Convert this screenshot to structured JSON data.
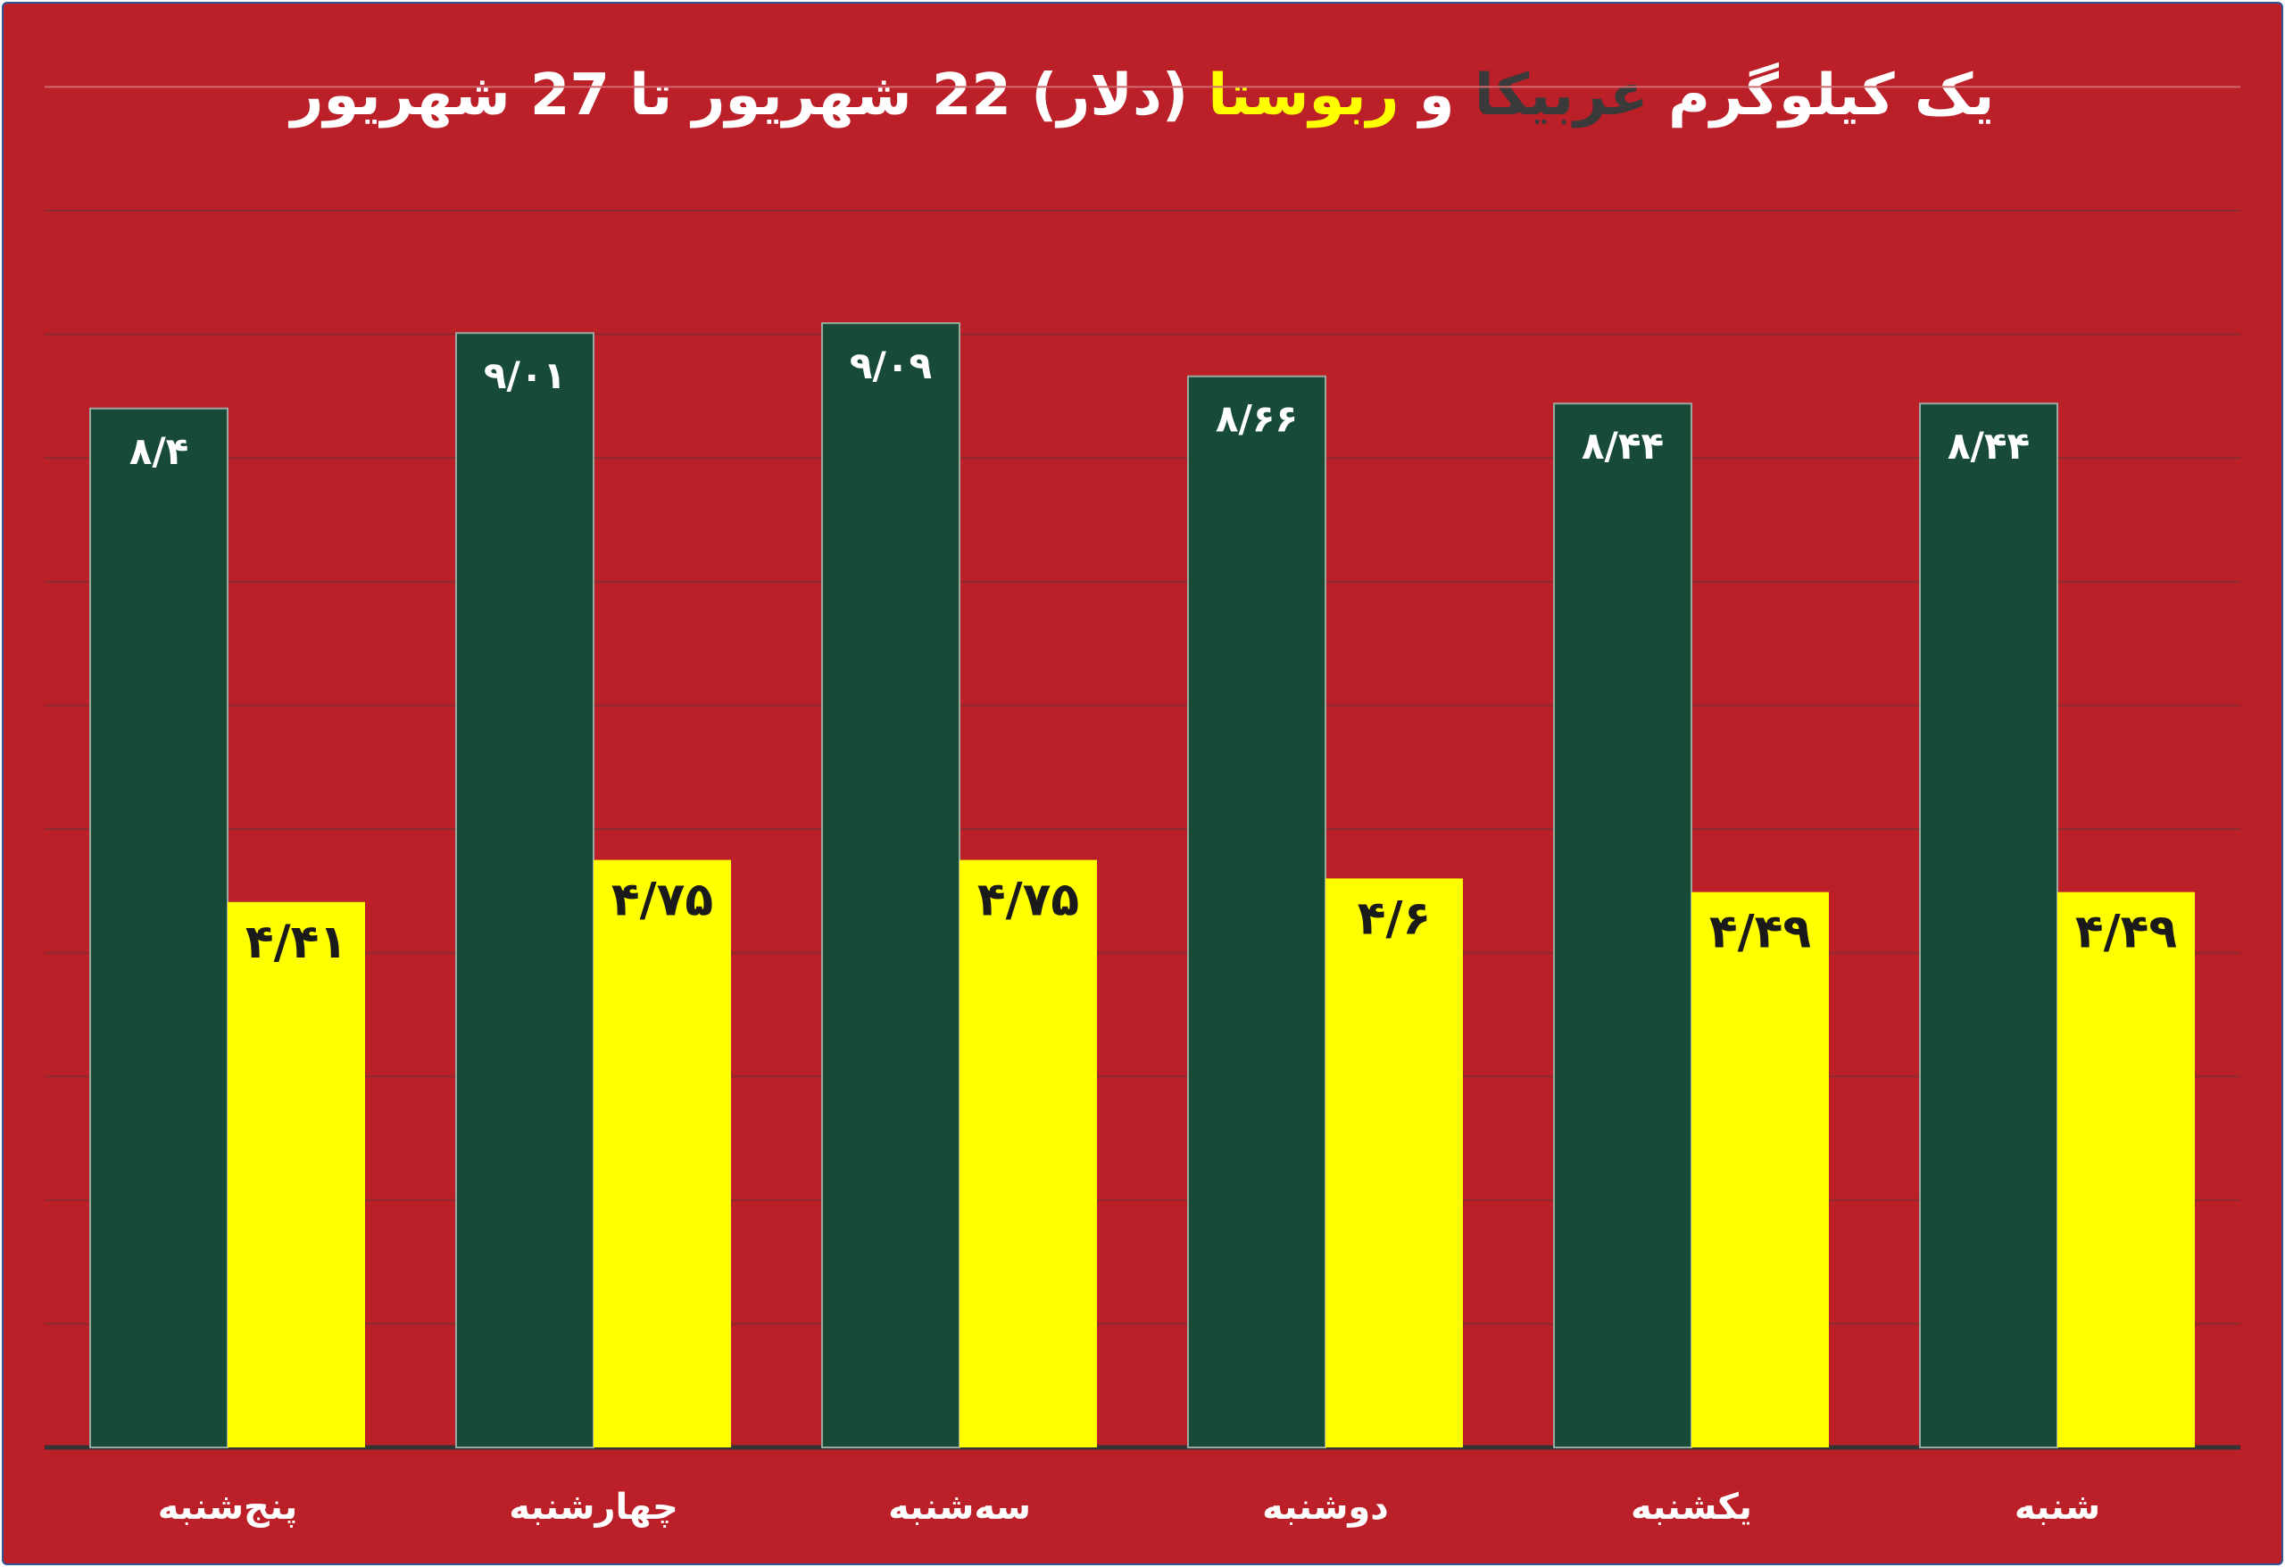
{
  "chart_data": {
    "type": "bar",
    "title": {
      "part1": "یک کیلوگرم",
      "arabica": "عربیکا",
      "and": "و",
      "robusta": "ربوستا",
      "part2": "(دلار) 22 شهریور تا 27 شهریور"
    },
    "categories": [
      "پنج‌شنبه",
      "چهارشنبه",
      "سه‌شنبه",
      "دوشنبه",
      "یکشنبه",
      "شنبه"
    ],
    "series": [
      {
        "name": "عربیکا",
        "color": "#174b37",
        "values": [
          8.4,
          9.01,
          9.09,
          8.66,
          8.44,
          8.44
        ],
        "labels": [
          "۸/۴",
          "۹/۰۱",
          "۹/۰۹",
          "۸/۶۶",
          "۸/۴۴",
          "۸/۴۴"
        ]
      },
      {
        "name": "ربوستا",
        "color": "#ffff00",
        "values": [
          4.41,
          4.75,
          4.75,
          4.6,
          4.49,
          4.49
        ],
        "labels": [
          "۴/۴۱",
          "۴/۷۵",
          "۴/۷۵",
          "۴/۶",
          "۴/۴۹",
          "۴/۴۹"
        ]
      }
    ],
    "ylim": [
      0,
      10
    ],
    "grid": true,
    "xlabel": "",
    "ylabel": ""
  }
}
